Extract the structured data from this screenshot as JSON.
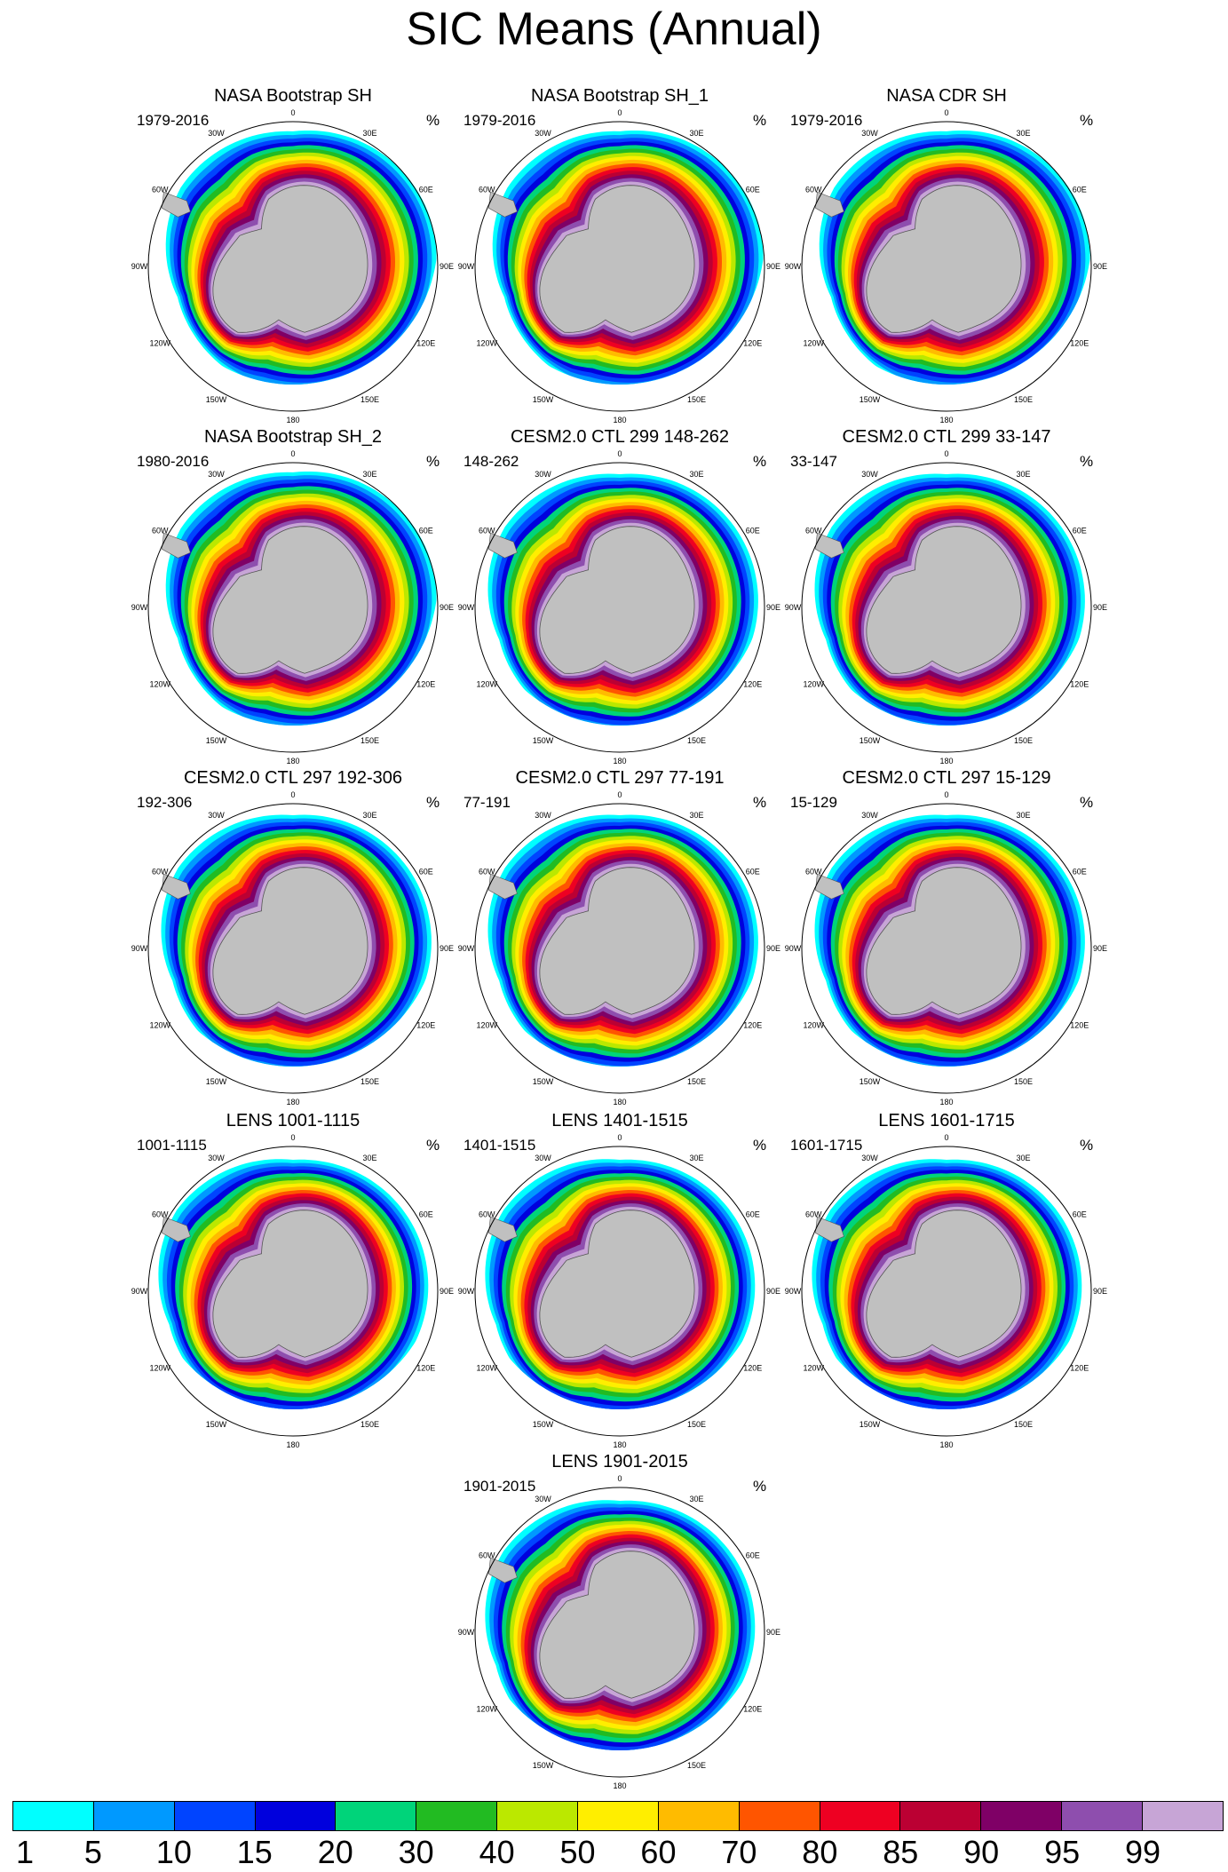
{
  "title": "SIC Means (Annual)",
  "unit": "%",
  "longitude_labels": [
    "0",
    "30E",
    "60E",
    "90E",
    "120E",
    "150E",
    "180",
    "150W",
    "120W",
    "90W",
    "60W",
    "30W"
  ],
  "panels": [
    {
      "title": "NASA Bootstrap SH",
      "left": "1979-2016",
      "variant": "obs"
    },
    {
      "title": "NASA Bootstrap SH_1",
      "left": "1979-2016",
      "variant": "obs"
    },
    {
      "title": "NASA CDR SH",
      "left": "1979-2016",
      "variant": "obs"
    },
    {
      "title": "NASA Bootstrap SH_2",
      "left": "1980-2016",
      "variant": "obs"
    },
    {
      "title": "CESM2.0 CTL 299 148-262",
      "left": "148-262",
      "variant": "model"
    },
    {
      "title": "CESM2.0 CTL 299 33-147",
      "left": "33-147",
      "variant": "model"
    },
    {
      "title": "CESM2.0 CTL 297 192-306",
      "left": "192-306",
      "variant": "model"
    },
    {
      "title": "CESM2.0 CTL 297 77-191",
      "left": "77-191",
      "variant": "model"
    },
    {
      "title": "CESM2.0 CTL 297 15-129",
      "left": "15-129",
      "variant": "model"
    },
    {
      "title": "LENS 1001-1115",
      "left": "1001-1115",
      "variant": "lens"
    },
    {
      "title": "LENS 1401-1515",
      "left": "1401-1515",
      "variant": "lens"
    },
    {
      "title": "LENS 1601-1715",
      "left": "1601-1715",
      "variant": "lens"
    },
    {
      "title": "LENS 1901-2015",
      "left": "1901-2015",
      "variant": "lens"
    }
  ],
  "colorbar": {
    "labels": [
      "1",
      "5",
      "10",
      "15",
      "20",
      "30",
      "40",
      "50",
      "60",
      "70",
      "80",
      "85",
      "90",
      "95",
      "99"
    ],
    "colors": [
      "#00ffff",
      "#0099ff",
      "#0044ff",
      "#0000dd",
      "#00d47a",
      "#22bb22",
      "#bbe800",
      "#ffee00",
      "#ffbb00",
      "#ff5500",
      "#ee0022",
      "#bb0033",
      "#7f0066",
      "#8e4eae",
      "#c7a5d6"
    ]
  }
}
